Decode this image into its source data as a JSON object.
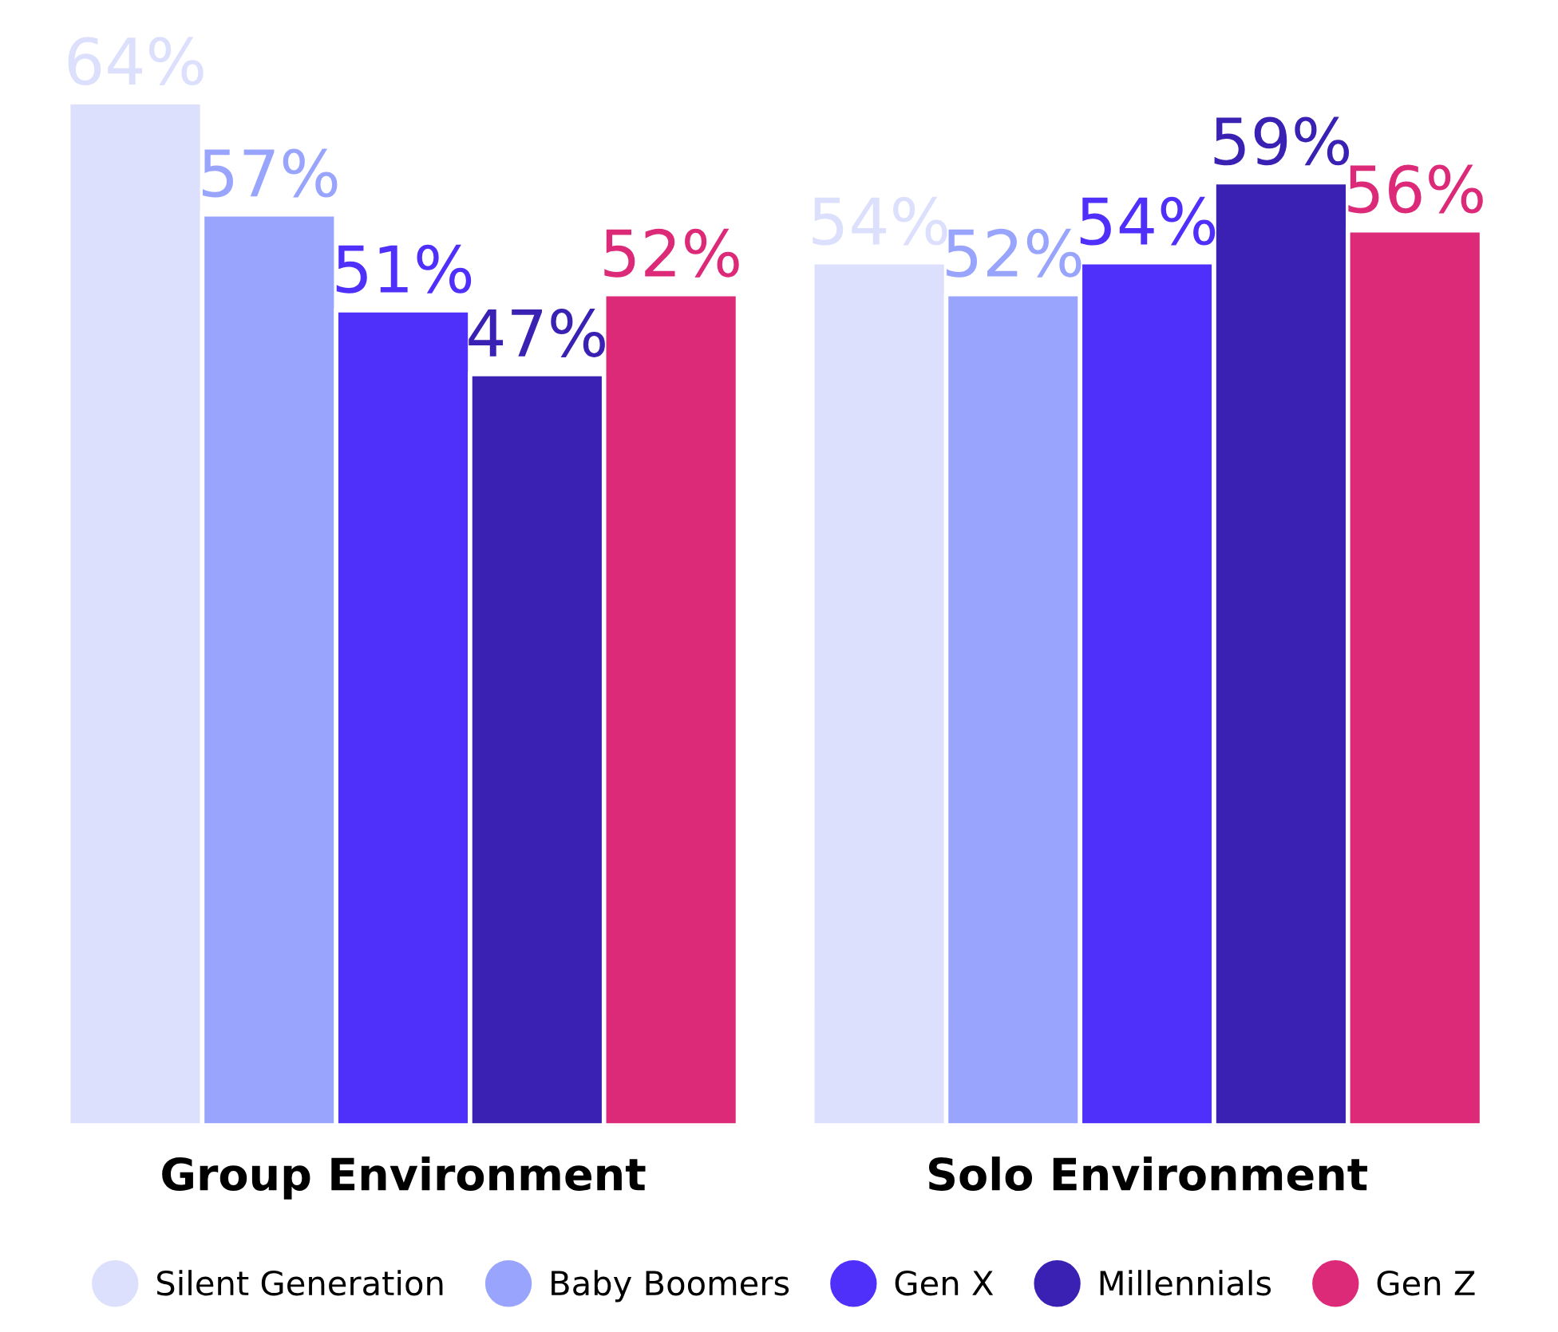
{
  "chart_data": {
    "type": "bar",
    "categories": [
      "Group Environment",
      "Solo Environment"
    ],
    "series": [
      {
        "name": "Silent Generation",
        "color": "#dde0fc",
        "values": [
          64,
          54
        ],
        "value_labels": [
          "64%",
          "54%"
        ]
      },
      {
        "name": "Baby Boomers",
        "color": "#99a5fd",
        "values": [
          57,
          52
        ],
        "value_labels": [
          "57%",
          "52%"
        ]
      },
      {
        "name": "Gen X",
        "color": "#4f30fb",
        "values": [
          51,
          54
        ],
        "value_labels": [
          "51%",
          "54%"
        ]
      },
      {
        "name": "Millennials",
        "color": "#3a21b3",
        "values": [
          47,
          59
        ],
        "value_labels": [
          "47%",
          "59%"
        ]
      },
      {
        "name": "Gen Z",
        "color": "#dc2a78",
        "values": [
          52,
          56
        ],
        "value_labels": [
          "52%",
          "56%"
        ]
      }
    ],
    "legend": "bottom",
    "grid": false,
    "tick_labels": "x"
  }
}
